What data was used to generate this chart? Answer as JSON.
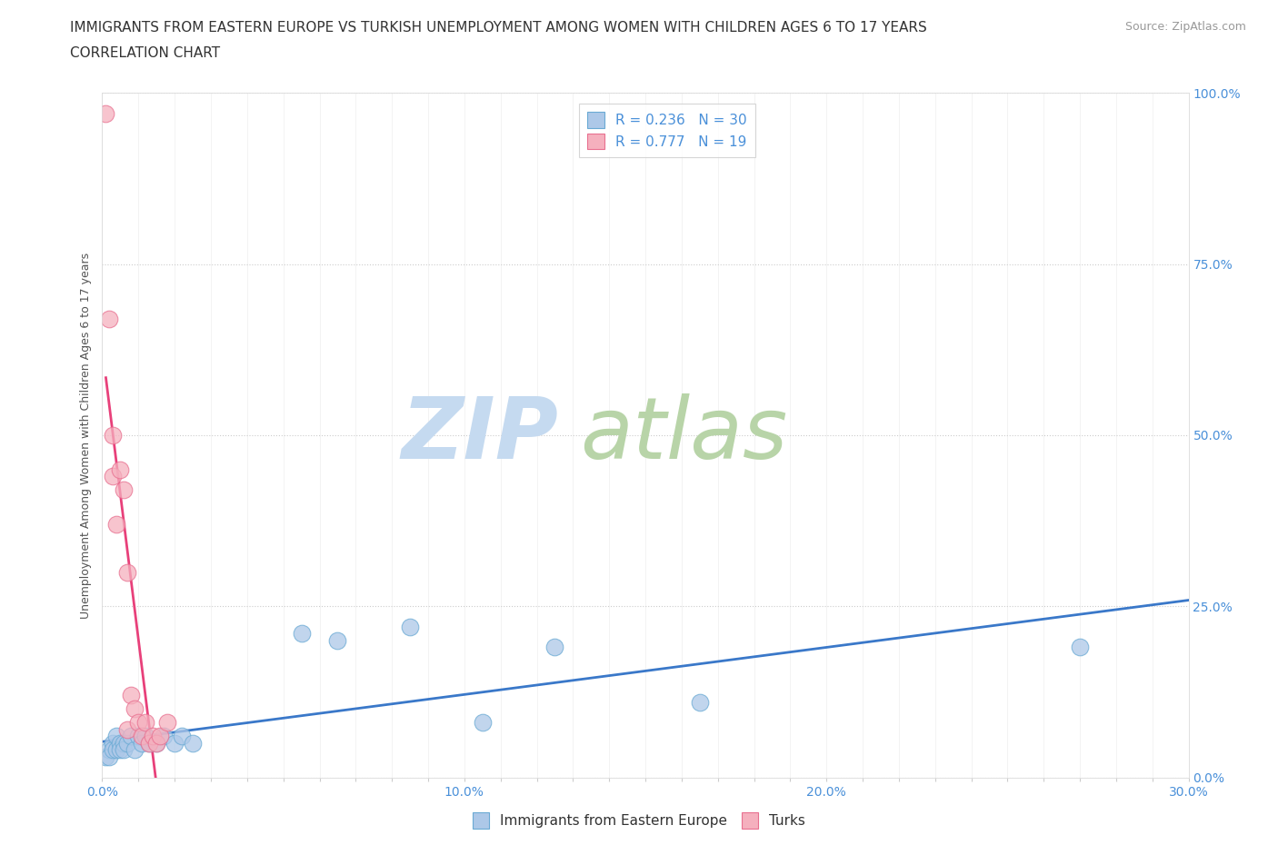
{
  "title_line1": "IMMIGRANTS FROM EASTERN EUROPE VS TURKISH UNEMPLOYMENT AMONG WOMEN WITH CHILDREN AGES 6 TO 17 YEARS",
  "title_line2": "CORRELATION CHART",
  "source_text": "Source: ZipAtlas.com",
  "ylabel": "Unemployment Among Women with Children Ages 6 to 17 years",
  "xlim": [
    0.0,
    0.3
  ],
  "ylim": [
    0.0,
    1.0
  ],
  "xtick_labels": [
    "0.0%",
    "",
    "",
    "",
    "",
    "",
    "",
    "",
    "",
    "",
    "10.0%",
    "",
    "",
    "",
    "",
    "",
    "",
    "",
    "",
    "",
    "20.0%",
    "",
    "",
    "",
    "",
    "",
    "",
    "",
    "",
    "",
    "30.0%"
  ],
  "xtick_values": [
    0.0,
    0.01,
    0.02,
    0.03,
    0.04,
    0.05,
    0.06,
    0.07,
    0.08,
    0.09,
    0.1,
    0.11,
    0.12,
    0.13,
    0.14,
    0.15,
    0.16,
    0.17,
    0.18,
    0.19,
    0.2,
    0.21,
    0.22,
    0.23,
    0.24,
    0.25,
    0.26,
    0.27,
    0.28,
    0.29,
    0.3
  ],
  "ytick_values": [
    0.0,
    0.25,
    0.5,
    0.75,
    1.0
  ],
  "ytick_labels_right": [
    "0.0%",
    "25.0%",
    "50.0%",
    "75.0%",
    "100.0%"
  ],
  "blue_R": 0.236,
  "blue_N": 30,
  "pink_R": 0.777,
  "pink_N": 19,
  "blue_color": "#adc8e8",
  "pink_color": "#f5b0be",
  "blue_edge_color": "#6aaad4",
  "pink_edge_color": "#e87090",
  "blue_line_color": "#3a78c9",
  "pink_line_color": "#e8407a",
  "watermark_zip": "ZIP",
  "watermark_atlas": "atlas",
  "watermark_color_zip": "#c5daf0",
  "watermark_color_atlas": "#b8d4a8",
  "legend1_label": "Immigrants from Eastern Europe",
  "legend2_label": "Turks",
  "blue_x": [
    0.001,
    0.002,
    0.002,
    0.003,
    0.003,
    0.004,
    0.004,
    0.005,
    0.005,
    0.006,
    0.006,
    0.007,
    0.008,
    0.009,
    0.01,
    0.011,
    0.012,
    0.013,
    0.015,
    0.017,
    0.02,
    0.022,
    0.025,
    0.055,
    0.065,
    0.085,
    0.105,
    0.125,
    0.165,
    0.27
  ],
  "blue_y": [
    0.03,
    0.04,
    0.03,
    0.05,
    0.04,
    0.06,
    0.04,
    0.05,
    0.04,
    0.05,
    0.04,
    0.05,
    0.06,
    0.04,
    0.06,
    0.05,
    0.06,
    0.05,
    0.05,
    0.06,
    0.05,
    0.06,
    0.05,
    0.21,
    0.2,
    0.22,
    0.08,
    0.19,
    0.11,
    0.19
  ],
  "pink_x": [
    0.001,
    0.002,
    0.003,
    0.003,
    0.004,
    0.005,
    0.006,
    0.007,
    0.007,
    0.008,
    0.009,
    0.01,
    0.011,
    0.012,
    0.013,
    0.014,
    0.015,
    0.016,
    0.018
  ],
  "pink_y": [
    0.97,
    0.67,
    0.5,
    0.44,
    0.37,
    0.45,
    0.42,
    0.3,
    0.07,
    0.12,
    0.1,
    0.08,
    0.06,
    0.08,
    0.05,
    0.06,
    0.05,
    0.06,
    0.08
  ],
  "title_fontsize": 11,
  "subtitle_fontsize": 11,
  "axis_label_fontsize": 9,
  "tick_fontsize": 10,
  "legend_fontsize": 11,
  "source_fontsize": 9,
  "scatter_size": 180
}
